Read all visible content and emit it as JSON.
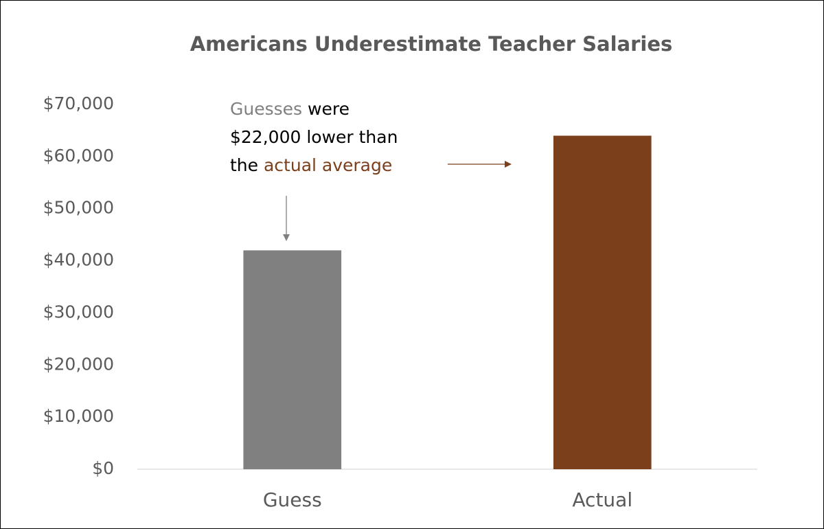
{
  "chart_data": {
    "type": "bar",
    "title": "Americans Underestimate Teacher Salaries",
    "categories": [
      "Guess",
      "Actual"
    ],
    "values": [
      42000,
      64000
    ],
    "colors": [
      "#808080",
      "#7b3f1c"
    ],
    "ylim": [
      0,
      70000
    ],
    "yticks": [
      {
        "value": 0,
        "label": "$0"
      },
      {
        "value": 10000,
        "label": "$10,000"
      },
      {
        "value": 20000,
        "label": "$20,000"
      },
      {
        "value": 30000,
        "label": "$30,000"
      },
      {
        "value": 40000,
        "label": "$40,000"
      },
      {
        "value": 50000,
        "label": "$50,000"
      },
      {
        "value": 60000,
        "label": "$60,000"
      },
      {
        "value": 70000,
        "label": "$70,000"
      }
    ],
    "grid": false,
    "annotation": [
      [
        {
          "text": "Guesses",
          "color": "#7f7f7f"
        },
        {
          "text": " were",
          "color": "#000000"
        }
      ],
      [
        {
          "text": "$22,000 lower than",
          "color": "#000000"
        }
      ],
      [
        {
          "text": "the ",
          "color": "#000000"
        },
        {
          "text": "actual average",
          "color": "#7b3f1c"
        }
      ]
    ]
  }
}
